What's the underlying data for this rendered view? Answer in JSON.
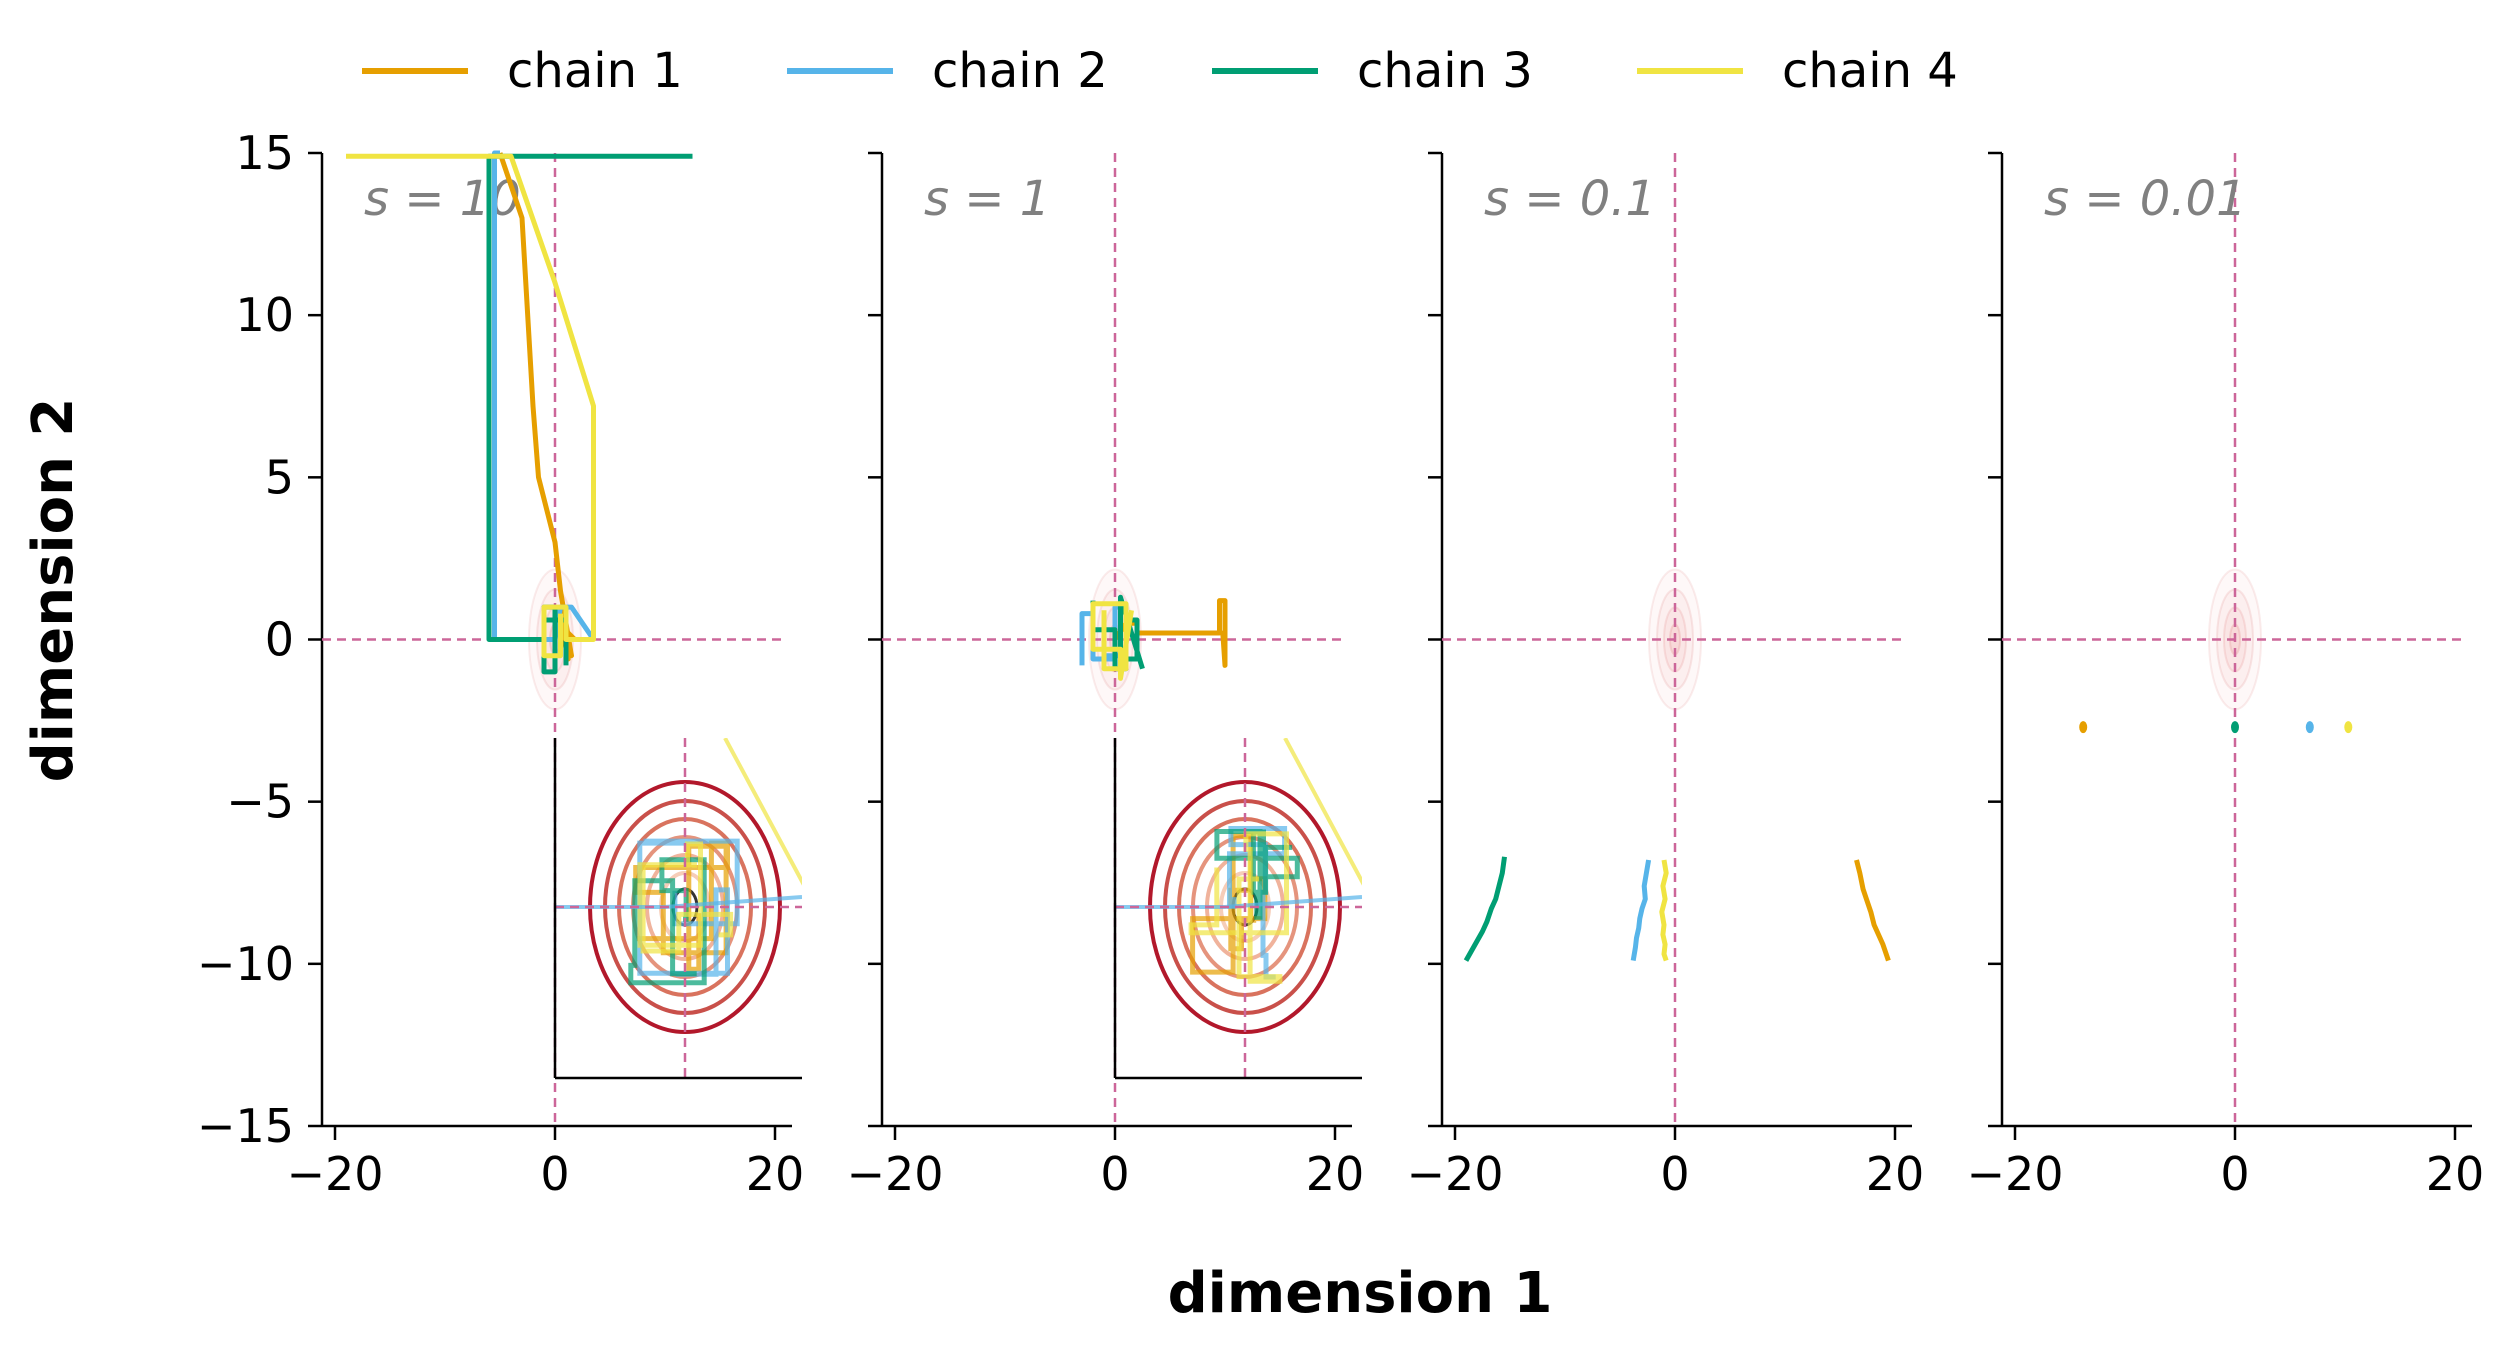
{
  "figure": {
    "xlabel": "dimension 1",
    "ylabel": "dimension 2"
  },
  "legend": {
    "placement": "top",
    "items": [
      {
        "label": "chain 1",
        "color": "#E69F00"
      },
      {
        "label": "chain 2",
        "color": "#56B4E9"
      },
      {
        "label": "chain 3",
        "color": "#009E73"
      },
      {
        "label": "chain 4",
        "color": "#F0E442"
      }
    ]
  },
  "colors": {
    "reference_lines": "#CC6699",
    "contour_outer": "#B2182B",
    "axis": "#000000",
    "annotation": "#808080"
  },
  "chart_data": [
    {
      "type": "line",
      "annotation": "s = 10",
      "xlim": [
        -21,
        22
      ],
      "ylim": [
        -15,
        15
      ],
      "xticks": [
        "−20",
        "0",
        "20"
      ],
      "yticks": [
        "−15",
        "−10",
        "−5",
        "0",
        "5",
        "10",
        "15"
      ],
      "reference_lines": {
        "x": 0,
        "y": 0
      },
      "series": [
        {
          "name": "chain 1",
          "x": [
            -5,
            -3,
            -2,
            -1.5,
            0,
            0.5,
            1,
            1.5,
            0.8,
            1.2,
            0.6,
            1.8
          ],
          "y": [
            15,
            13,
            7.2,
            5,
            3,
            1.5,
            0.5,
            -0.5,
            0.8,
            -0.6,
            0.4,
            0
          ]
        },
        {
          "name": "chain 2",
          "x": [
            -5,
            -5,
            -5.5,
            -5.5,
            0,
            0.5,
            1.5,
            2.5,
            3.5
          ],
          "y": [
            15,
            15,
            15,
            0,
            0,
            1,
            1,
            0.5,
            0
          ]
        },
        {
          "name": "chain 3",
          "x": [
            12.5,
            -6,
            -6,
            -1,
            -1,
            0,
            0,
            -1,
            -1,
            1,
            1
          ],
          "y": [
            14.9,
            14.9,
            0,
            0,
            1,
            1,
            -1,
            -1,
            0.6,
            0.6,
            -0.8
          ]
        },
        {
          "name": "chain 4",
          "x": [
            -19,
            -4,
            0,
            3.5,
            3.5,
            1,
            1,
            -1,
            -1,
            0.5,
            0.5
          ],
          "y": [
            14.9,
            14.9,
            11,
            7.2,
            0,
            0,
            1,
            1,
            -0.5,
            -0.5,
            0.8
          ]
        }
      ],
      "inset": true
    },
    {
      "type": "line",
      "annotation": "s = 1",
      "xlim": [
        -21,
        22
      ],
      "ylim": [
        -15,
        15
      ],
      "xticks": [
        "−20",
        "0",
        "20"
      ],
      "yticks": [],
      "reference_lines": {
        "x": 0,
        "y": 0
      },
      "series": [
        {
          "name": "chain 1",
          "x": [
            0,
            1,
            2,
            2,
            9.5,
            9.5,
            10,
            10,
            9.8,
            10.2
          ],
          "y": [
            0,
            0.5,
            0.5,
            0.2,
            0.2,
            1.2,
            1.2,
            -0.8,
            0.2,
            0.2
          ]
        },
        {
          "name": "chain 2",
          "x": [
            -3,
            -3,
            -2,
            -2,
            0,
            0,
            1,
            1,
            -1,
            -1
          ],
          "y": [
            -0.8,
            0.8,
            0.8,
            -0.6,
            -0.6,
            1,
            1,
            -0.5,
            -0.5,
            0.6
          ]
        },
        {
          "name": "chain 3",
          "x": [
            -2,
            -2,
            0,
            0,
            1,
            1,
            2,
            2,
            0.5,
            0.5,
            2.5
          ],
          "y": [
            1.2,
            0.3,
            0.3,
            -0.9,
            -0.9,
            0.6,
            0.6,
            -0.6,
            -0.6,
            1.3,
            -0.9
          ]
        },
        {
          "name": "chain 4",
          "x": [
            -1,
            -1,
            1,
            1,
            -2,
            -2,
            0.5,
            0.5,
            1.5
          ],
          "y": [
            0.9,
            -0.9,
            -0.9,
            1.1,
            1.1,
            -0.3,
            -0.3,
            -1.2,
            0.9
          ]
        }
      ],
      "inset": true
    },
    {
      "type": "line",
      "annotation": "s = 0.1",
      "xlim": [
        -21,
        22
      ],
      "ylim": [
        -15,
        15
      ],
      "xticks": [
        "−20",
        "0",
        "20"
      ],
      "yticks": [],
      "reference_lines": {
        "x": 0,
        "y": 0
      },
      "series": [
        {
          "name": "chain 1",
          "x": [
            16.5,
            16.8,
            17.1,
            17.4,
            17.8,
            18.1,
            18.5,
            18.9,
            19.2,
            19.4
          ],
          "y": [
            -6.8,
            -7.2,
            -7.7,
            -8.0,
            -8.4,
            -8.8,
            -9.1,
            -9.4,
            -9.7,
            -9.9
          ]
        },
        {
          "name": "chain 2",
          "x": [
            -2.4,
            -2.6,
            -2.8,
            -2.7,
            -3.0,
            -3.2,
            -3.3,
            -3.5,
            -3.6,
            -3.8
          ],
          "y": [
            -6.8,
            -7.2,
            -7.6,
            -8.0,
            -8.3,
            -8.6,
            -8.9,
            -9.2,
            -9.5,
            -9.9
          ]
        },
        {
          "name": "chain 3",
          "x": [
            -15.5,
            -15.7,
            -16.0,
            -16.3,
            -16.7,
            -17.1,
            -17.5,
            -18.0,
            -18.5,
            -19.0
          ],
          "y": [
            -6.7,
            -7.2,
            -7.6,
            -8.0,
            -8.3,
            -8.7,
            -9.0,
            -9.3,
            -9.6,
            -9.9
          ]
        },
        {
          "name": "chain 4",
          "x": [
            -1.0,
            -0.8,
            -1.1,
            -0.9,
            -1.2,
            -1.0,
            -1.1,
            -0.9,
            -1.0,
            -0.8
          ],
          "y": [
            -6.8,
            -7.2,
            -7.6,
            -8.0,
            -8.4,
            -8.8,
            -9.1,
            -9.4,
            -9.7,
            -9.9
          ]
        }
      ],
      "inset": false
    },
    {
      "type": "scatter",
      "annotation": "s = 0.01",
      "xlim": [
        -21,
        22
      ],
      "ylim": [
        -15,
        15
      ],
      "xticks": [
        "−20",
        "0",
        "20"
      ],
      "yticks": [],
      "reference_lines": {
        "x": 0,
        "y": 0
      },
      "series": [
        {
          "name": "chain 1",
          "x": [
            -13.8
          ],
          "y": [
            -2.7
          ]
        },
        {
          "name": "chain 2",
          "x": [
            6.8
          ],
          "y": [
            -2.7
          ]
        },
        {
          "name": "chain 3",
          "x": [
            0
          ],
          "y": [
            -2.7
          ]
        },
        {
          "name": "chain 4",
          "x": [
            10.3
          ],
          "y": [
            -2.7
          ]
        }
      ],
      "inset": false
    }
  ]
}
